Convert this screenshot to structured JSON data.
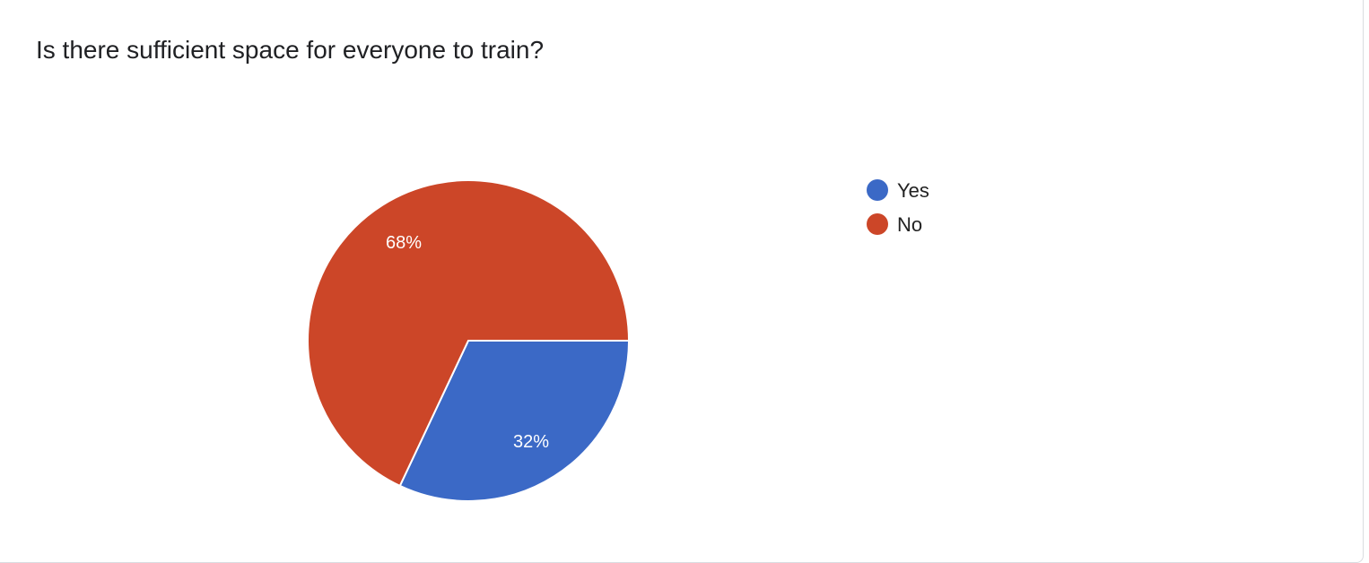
{
  "chart_data": {
    "type": "pie",
    "title": "Is there sufficient space for everyone to train?",
    "categories": [
      "Yes",
      "No"
    ],
    "values": [
      32,
      68
    ],
    "labels": [
      "32%",
      "68%"
    ],
    "colors": [
      "#3b69c6",
      "#cc4628"
    ],
    "legend_position": "right"
  }
}
